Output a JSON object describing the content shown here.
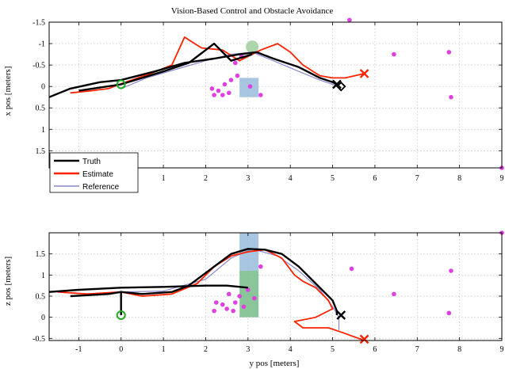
{
  "chart_data": [
    {
      "type": "line",
      "title": "Vision-Based Control and Obstacle Avoidance",
      "xlabel": "",
      "ylabel": "x pos [meters]",
      "xlim": [
        -1.7,
        9
      ],
      "ylim": [
        -1.5,
        1.9
      ],
      "y_reversed": true,
      "xticks": [
        -1,
        0,
        1,
        2,
        3,
        4,
        5,
        6,
        7,
        8,
        9
      ],
      "yticks": [
        -1.5,
        -1,
        -0.5,
        0,
        0.5,
        1,
        1.5
      ],
      "xtick_labels_visible": [
        "1",
        "2",
        "3",
        "4",
        "5",
        "6",
        "7",
        "8",
        "9"
      ],
      "grid": true,
      "legend": {
        "placement": "bottom-left",
        "entries": [
          {
            "name": "Truth",
            "color": "#000000"
          },
          {
            "name": "Estimate",
            "color": "#ff2200"
          },
          {
            "name": "Reference",
            "color": "#8888cc"
          }
        ]
      },
      "series": [
        {
          "name": "Truth",
          "color": "#000000",
          "points": [
            [
              -1.7,
              0.25
            ],
            [
              -1.2,
              0.05
            ],
            [
              -0.5,
              -0.1
            ],
            [
              0,
              -0.15
            ],
            [
              0.8,
              -0.35
            ],
            [
              1.5,
              -0.55
            ],
            [
              2.2,
              -0.65
            ],
            [
              2.8,
              -0.75
            ],
            [
              3.2,
              -0.8
            ],
            [
              3.6,
              -0.65
            ],
            [
              4.2,
              -0.45
            ],
            [
              4.7,
              -0.2
            ],
            [
              5.0,
              -0.1
            ],
            [
              5.1,
              -0.05
            ]
          ]
        },
        {
          "name": "Truth",
          "color": "#000000",
          "points": [
            [
              -1.0,
              0.1
            ],
            [
              0,
              -0.05
            ],
            [
              1.0,
              -0.35
            ],
            [
              1.6,
              -0.55
            ],
            [
              2.2,
              -1.0
            ],
            [
              2.6,
              -0.6
            ],
            [
              3.1,
              -0.75
            ]
          ]
        },
        {
          "name": "Estimate",
          "color": "#ff2200",
          "points": [
            [
              -1.2,
              0.15
            ],
            [
              -0.7,
              0.1
            ],
            [
              -0.3,
              0.05
            ],
            [
              0.1,
              -0.1
            ],
            [
              0.7,
              -0.3
            ],
            [
              1.2,
              -0.5
            ],
            [
              1.5,
              -1.15
            ],
            [
              1.9,
              -0.9
            ],
            [
              2.4,
              -0.85
            ],
            [
              2.8,
              -0.6
            ],
            [
              3.3,
              -0.85
            ],
            [
              3.7,
              -1.0
            ],
            [
              4.0,
              -0.8
            ],
            [
              4.3,
              -0.5
            ],
            [
              4.7,
              -0.25
            ],
            [
              5.0,
              -0.2
            ],
            [
              5.3,
              -0.2
            ],
            [
              5.75,
              -0.3
            ]
          ]
        },
        {
          "name": "Reference",
          "color": "#8888cc",
          "points": [
            [
              0,
              0.05
            ],
            [
              0.6,
              -0.2
            ],
            [
              1.3,
              -0.4
            ],
            [
              2.0,
              -0.6
            ],
            [
              2.6,
              -0.75
            ],
            [
              3.1,
              -0.8
            ],
            [
              3.6,
              -0.6
            ],
            [
              4.2,
              -0.35
            ],
            [
              4.7,
              -0.15
            ],
            [
              5.0,
              -0.05
            ],
            [
              5.15,
              0
            ]
          ]
        }
      ],
      "obstacles": [
        {
          "x": 3.05,
          "y": 0.0,
          "color": "#e040e0"
        },
        {
          "x": 2.7,
          "y": -0.55,
          "color": "#e040e0"
        },
        {
          "x": 2.85,
          "y": -0.7,
          "color": "#e040e0"
        },
        {
          "x": 2.15,
          "y": 0.05,
          "color": "#e040e0"
        },
        {
          "x": 2.3,
          "y": 0.1,
          "color": "#e040e0"
        },
        {
          "x": 2.45,
          "y": -0.05,
          "color": "#e040e0"
        },
        {
          "x": 2.55,
          "y": 0.15,
          "color": "#e040e0"
        },
        {
          "x": 2.4,
          "y": 0.2,
          "color": "#e040e0"
        },
        {
          "x": 2.6,
          "y": -0.15,
          "color": "#e040e0"
        },
        {
          "x": 2.75,
          "y": -0.25,
          "color": "#e040e0"
        },
        {
          "x": 2.2,
          "y": 0.2,
          "color": "#e040e0"
        },
        {
          "x": 3.3,
          "y": 0.2,
          "color": "#e040e0"
        },
        {
          "x": 5.4,
          "y": -1.55,
          "color": "#e040e0"
        },
        {
          "x": 6.45,
          "y": -0.75,
          "color": "#e040e0"
        },
        {
          "x": 7.75,
          "y": -0.8,
          "color": "#e040e0"
        },
        {
          "x": 7.8,
          "y": 0.25,
          "color": "#e040e0"
        },
        {
          "x": 9.0,
          "y": 1.9,
          "color": "#e040e0"
        }
      ],
      "regions": [
        {
          "x": [
            2.8,
            3.25
          ],
          "y": [
            -0.2,
            0.25
          ],
          "color": "#99bbdd"
        },
        {
          "x": [
            2.95,
            3.25
          ],
          "y": [
            -1.05,
            -0.8
          ],
          "color": "#99cc99",
          "shape": "circle"
        }
      ],
      "markers": [
        {
          "kind": "start",
          "x": 0.0,
          "y": -0.05,
          "color": "#22aa22"
        },
        {
          "kind": "end-truth",
          "x": 5.1,
          "y": -0.05,
          "color": "#000000"
        },
        {
          "kind": "end-diamond",
          "x": 5.2,
          "y": 0.0,
          "color": "#000000"
        },
        {
          "kind": "end-estimate",
          "x": 5.75,
          "y": -0.3,
          "color": "#ff2200"
        }
      ]
    },
    {
      "type": "line",
      "title": "",
      "xlabel": "y pos [meters]",
      "ylabel": "z pos [meters]",
      "xlim": [
        -1.7,
        9
      ],
      "ylim": [
        -0.55,
        2.0
      ],
      "xticks": [
        -1,
        0,
        1,
        2,
        3,
        4,
        5,
        6,
        7,
        8,
        9
      ],
      "yticks": [
        -0.5,
        0,
        0.5,
        1,
        1.5
      ],
      "grid": true,
      "series": [
        {
          "name": "Truth",
          "color": "#000000",
          "points": [
            [
              -1.7,
              0.6
            ],
            [
              -1.0,
              0.65
            ],
            [
              0,
              0.7
            ],
            [
              1.0,
              0.72
            ],
            [
              2.0,
              0.75
            ],
            [
              2.5,
              0.75
            ],
            [
              3.0,
              0.7
            ]
          ]
        },
        {
          "name": "Truth",
          "color": "#000000",
          "points": [
            [
              -1.2,
              0.5
            ],
            [
              -0.3,
              0.55
            ],
            [
              0,
              0.6
            ],
            [
              0.5,
              0.55
            ],
            [
              1.2,
              0.6
            ],
            [
              1.6,
              0.75
            ],
            [
              2.2,
              1.2
            ],
            [
              2.6,
              1.5
            ],
            [
              3.0,
              1.62
            ],
            [
              3.4,
              1.6
            ],
            [
              3.8,
              1.5
            ],
            [
              4.2,
              1.2
            ],
            [
              4.6,
              0.8
            ],
            [
              5.0,
              0.4
            ],
            [
              5.1,
              0.15
            ],
            [
              5.1,
              0.05
            ]
          ]
        },
        {
          "name": "Truth",
          "color": "#000000",
          "points": [
            [
              0,
              0.6
            ],
            [
              0,
              0.4
            ],
            [
              0,
              0.05
            ]
          ]
        },
        {
          "name": "Estimate",
          "color": "#ff2200",
          "points": [
            [
              -1.5,
              0.6
            ],
            [
              -0.8,
              0.55
            ],
            [
              0,
              0.6
            ],
            [
              0.5,
              0.5
            ],
            [
              1.2,
              0.55
            ],
            [
              1.8,
              0.8
            ],
            [
              2.2,
              1.2
            ],
            [
              2.6,
              1.45
            ],
            [
              3.0,
              1.55
            ],
            [
              3.4,
              1.6
            ],
            [
              3.8,
              1.4
            ],
            [
              4.1,
              1.0
            ],
            [
              4.3,
              0.85
            ],
            [
              4.6,
              0.7
            ],
            [
              4.9,
              0.4
            ],
            [
              5.0,
              0.2
            ],
            [
              4.6,
              0.0
            ],
            [
              4.1,
              -0.1
            ],
            [
              4.3,
              -0.25
            ],
            [
              4.9,
              -0.25
            ],
            [
              5.2,
              -0.35
            ],
            [
              5.75,
              -0.55
            ]
          ]
        },
        {
          "name": "Reference",
          "color": "#8888cc",
          "points": [
            [
              0,
              0.6
            ],
            [
              1.0,
              0.62
            ],
            [
              2.0,
              0.9
            ],
            [
              2.6,
              1.4
            ],
            [
              3.1,
              1.62
            ],
            [
              3.7,
              1.45
            ],
            [
              4.2,
              1.1
            ],
            [
              4.7,
              0.65
            ],
            [
              5.0,
              0.25
            ],
            [
              5.15,
              0.0
            ],
            [
              5.15,
              -0.3
            ]
          ]
        }
      ],
      "obstacles": [
        {
          "x": 2.25,
          "y": 0.35,
          "color": "#e040e0"
        },
        {
          "x": 2.4,
          "y": 0.3,
          "color": "#e040e0"
        },
        {
          "x": 2.5,
          "y": 0.2,
          "color": "#e040e0"
        },
        {
          "x": 2.55,
          "y": 0.55,
          "color": "#e040e0"
        },
        {
          "x": 2.65,
          "y": 0.15,
          "color": "#e040e0"
        },
        {
          "x": 2.7,
          "y": 0.35,
          "color": "#e040e0"
        },
        {
          "x": 2.2,
          "y": 0.15,
          "color": "#e040e0"
        },
        {
          "x": 2.8,
          "y": 0.5,
          "color": "#e040e0"
        },
        {
          "x": 2.9,
          "y": 0.25,
          "color": "#e040e0"
        },
        {
          "x": 3.0,
          "y": 0.65,
          "color": "#e040e0"
        },
        {
          "x": 3.15,
          "y": 0.45,
          "color": "#e040e0"
        },
        {
          "x": 3.3,
          "y": 1.2,
          "color": "#e040e0"
        },
        {
          "x": 5.45,
          "y": 1.15,
          "color": "#e040e0"
        },
        {
          "x": 6.45,
          "y": 0.55,
          "color": "#e040e0"
        },
        {
          "x": 7.75,
          "y": 0.1,
          "color": "#e040e0"
        },
        {
          "x": 7.8,
          "y": 1.1,
          "color": "#e040e0"
        },
        {
          "x": 9.0,
          "y": 2.0,
          "color": "#e040e0"
        }
      ],
      "regions": [
        {
          "x": [
            2.8,
            3.25
          ],
          "y": [
            1.1,
            2.0
          ],
          "color": "#99bbdd"
        },
        {
          "x": [
            2.8,
            3.25
          ],
          "y": [
            0.0,
            1.1
          ],
          "color": "#77bb88"
        }
      ],
      "markers": [
        {
          "kind": "start",
          "x": 0.0,
          "y": 0.05,
          "color": "#22aa22"
        },
        {
          "kind": "end-truth",
          "x": 5.2,
          "y": 0.05,
          "color": "#000000"
        },
        {
          "kind": "end-estimate",
          "x": 5.75,
          "y": -0.52,
          "color": "#ff2200"
        }
      ]
    }
  ]
}
